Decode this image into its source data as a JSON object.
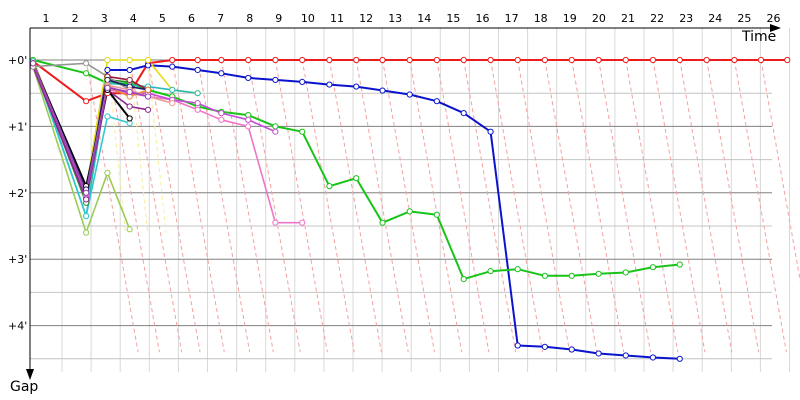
{
  "chart_data": {
    "type": "line",
    "x_label": "Time",
    "y_label": "Gap",
    "x_ticks": [
      "1",
      "2",
      "3",
      "4",
      "5",
      "6",
      "7",
      "8",
      "9",
      "10",
      "11",
      "12",
      "13",
      "14",
      "15",
      "16",
      "17",
      "18",
      "19",
      "20",
      "21",
      "22",
      "23",
      "24",
      "25",
      "26"
    ],
    "y_ticks": [
      "+0'",
      "+1'",
      "+2'",
      "+3'",
      "+4'"
    ],
    "ylim_minutes": [
      -0.4,
      4.5
    ],
    "grid": true,
    "colors": {
      "red": "#ee1c1c",
      "blue": "#0a14cc",
      "green": "#18c418",
      "pink": "#ee74c8",
      "magenta": "#c64ad6",
      "teal": "#2cbab4",
      "cyan": "#30c8d0",
      "yellow": "#e4dc10",
      "olive_green": "#9acc55",
      "dark_green": "#2c8c2c",
      "purple": "#8a2890",
      "gray": "#969696",
      "dark_gray": "#444444",
      "black": "#000000",
      "dark_red": "#9a1838",
      "navy": "#1a1a6a",
      "salmon": "#ee9c9c",
      "orange": "#e89038",
      "violet": "#9a40c0",
      "dashed_link": "#f4a0a0",
      "gridline": "#808080"
    },
    "series": [
      {
        "color": "red",
        "points": [
          [
            0.53,
            0.02
          ],
          [
            2.35,
            0.62
          ],
          [
            3.08,
            0.5
          ],
          [
            3.84,
            0.5
          ],
          [
            4.47,
            0.05
          ],
          [
            5.3,
            0
          ],
          [
            6.17,
            0
          ],
          [
            6.98,
            0
          ],
          [
            7.9,
            0
          ],
          [
            8.83,
            0
          ],
          [
            9.75,
            0
          ],
          [
            10.68,
            0
          ],
          [
            11.6,
            0
          ],
          [
            12.5,
            0
          ],
          [
            13.43,
            0
          ],
          [
            14.36,
            0
          ],
          [
            15.28,
            0
          ],
          [
            16.2,
            0
          ],
          [
            17.13,
            0
          ],
          [
            18.06,
            0
          ],
          [
            18.98,
            0
          ],
          [
            19.9,
            0
          ],
          [
            20.83,
            0
          ],
          [
            21.76,
            0
          ],
          [
            22.68,
            0
          ],
          [
            23.6,
            0
          ],
          [
            24.55,
            0
          ],
          [
            25.46,
            0
          ],
          [
            26.36,
            0
          ]
        ]
      },
      {
        "color": "blue",
        "points": [
          [
            0.53,
            0.02
          ],
          [
            2.35,
            2
          ],
          [
            3.08,
            0.15
          ],
          [
            3.84,
            0.15
          ],
          [
            4.47,
            0.08
          ],
          [
            5.3,
            0.1
          ],
          [
            6.17,
            0.15
          ],
          [
            6.98,
            0.2
          ],
          [
            7.9,
            0.27
          ],
          [
            8.83,
            0.3
          ],
          [
            9.75,
            0.33
          ],
          [
            10.68,
            0.37
          ],
          [
            11.6,
            0.4
          ],
          [
            12.5,
            0.46
          ],
          [
            13.43,
            0.52
          ],
          [
            14.36,
            0.62
          ],
          [
            15.28,
            0.8
          ],
          [
            16.2,
            1.08
          ],
          [
            17.13,
            4.3
          ],
          [
            18.06,
            4.32
          ],
          [
            18.98,
            4.36
          ],
          [
            19.9,
            4.42
          ],
          [
            20.83,
            4.45
          ],
          [
            21.76,
            4.48
          ],
          [
            22.68,
            4.5
          ]
        ]
      },
      {
        "color": "green",
        "points": [
          [
            0.53,
            0
          ],
          [
            2.35,
            0.2
          ],
          [
            3.08,
            0.35
          ],
          [
            3.84,
            0.35
          ],
          [
            4.47,
            0.45
          ],
          [
            5.3,
            0.55
          ],
          [
            6.17,
            0.7
          ],
          [
            6.98,
            0.78
          ],
          [
            7.9,
            0.83
          ],
          [
            8.83,
            1
          ],
          [
            9.75,
            1.08
          ],
          [
            10.68,
            1.9
          ],
          [
            11.6,
            1.78
          ],
          [
            12.5,
            2.45
          ],
          [
            13.43,
            2.28
          ],
          [
            14.36,
            2.33
          ],
          [
            15.28,
            3.3
          ],
          [
            16.2,
            3.18
          ],
          [
            17.13,
            3.15
          ],
          [
            18.06,
            3.25
          ],
          [
            18.98,
            3.25
          ],
          [
            19.9,
            3.22
          ],
          [
            20.83,
            3.2
          ],
          [
            21.76,
            3.12
          ],
          [
            22.68,
            3.08
          ]
        ]
      },
      {
        "color": "yellow",
        "points": [
          [
            0.53,
            0.02
          ],
          [
            2.35,
            1.95
          ],
          [
            3.08,
            0
          ],
          [
            3.84,
            0
          ],
          [
            4.47,
            0
          ],
          [
            5.3,
            0.45
          ],
          [
            6.17,
            0.5
          ]
        ]
      },
      {
        "color": "pink",
        "points": [
          [
            0.53,
            0.05
          ],
          [
            2.35,
            2.05
          ],
          [
            3.08,
            0.45
          ],
          [
            3.84,
            0.5
          ],
          [
            4.47,
            0.55
          ],
          [
            5.3,
            0.6
          ],
          [
            6.17,
            0.75
          ],
          [
            6.98,
            0.9
          ],
          [
            7.9,
            1
          ],
          [
            8.83,
            2.45
          ],
          [
            9.75,
            2.45
          ]
        ]
      },
      {
        "color": "magenta",
        "points": [
          [
            0.53,
            0.05
          ],
          [
            2.35,
            2.08
          ],
          [
            3.08,
            0.4
          ],
          [
            3.84,
            0.5
          ],
          [
            4.47,
            0.5
          ],
          [
            5.3,
            0.6
          ],
          [
            6.17,
            0.65
          ],
          [
            6.98,
            0.8
          ],
          [
            7.9,
            0.9
          ],
          [
            8.83,
            1.08
          ]
        ]
      },
      {
        "color": "teal",
        "points": [
          [
            0.53,
            0.02
          ],
          [
            2.35,
            2.35
          ],
          [
            3.08,
            0.35
          ],
          [
            3.84,
            0.38
          ],
          [
            4.47,
            0.4
          ],
          [
            5.3,
            0.45
          ],
          [
            6.17,
            0.5
          ]
        ]
      },
      {
        "color": "cyan",
        "points": [
          [
            0.53,
            0.05
          ],
          [
            2.35,
            2.35
          ],
          [
            3.08,
            0.85
          ],
          [
            3.84,
            0.95
          ]
        ]
      },
      {
        "color": "olive_green",
        "points": [
          [
            0.53,
            0.1
          ],
          [
            2.35,
            2.6
          ],
          [
            3.08,
            1.7
          ],
          [
            3.84,
            2.55
          ]
        ]
      },
      {
        "color": "dark_green",
        "points": [
          [
            0.53,
            0.05
          ],
          [
            2.35,
            2.15
          ],
          [
            3.08,
            0.3
          ],
          [
            3.84,
            0.33
          ]
        ]
      },
      {
        "color": "purple",
        "points": [
          [
            0.53,
            0.1
          ],
          [
            2.35,
            2.1
          ],
          [
            3.08,
            0.45
          ],
          [
            3.84,
            0.7
          ],
          [
            4.47,
            0.75
          ]
        ]
      },
      {
        "color": "gray",
        "points": [
          [
            0.53,
            0.1
          ],
          [
            2.35,
            0.05
          ],
          [
            3.08,
            0.25
          ],
          [
            3.84,
            0.45
          ]
        ]
      },
      {
        "color": "black",
        "points": [
          [
            0.53,
            0.05
          ],
          [
            2.35,
            1.9
          ],
          [
            3.08,
            0.45
          ],
          [
            3.84,
            0.88
          ]
        ]
      },
      {
        "color": "dark_red",
        "points": [
          [
            0.53,
            0.05
          ],
          [
            2.35,
            2
          ],
          [
            3.08,
            0.25
          ],
          [
            3.84,
            0.3
          ],
          [
            4.47,
            0.45
          ]
        ]
      },
      {
        "color": "navy",
        "points": [
          [
            0.53,
            0.05
          ],
          [
            2.35,
            1.95
          ],
          [
            3.08,
            0.3
          ],
          [
            3.84,
            0.4
          ],
          [
            4.47,
            0.45
          ]
        ]
      },
      {
        "color": "salmon",
        "points": [
          [
            0.53,
            0.05
          ],
          [
            2.35,
            2
          ],
          [
            3.08,
            0.38
          ],
          [
            3.84,
            0.45
          ],
          [
            4.47,
            0.55
          ],
          [
            5.3,
            0.65
          ]
        ]
      },
      {
        "color": "orange",
        "points": [
          [
            0.53,
            0.05
          ],
          [
            2.35,
            2
          ],
          [
            3.08,
            0.4
          ],
          [
            3.84,
            0.55
          ],
          [
            4.47,
            0.45
          ]
        ]
      },
      {
        "color": "violet",
        "points": [
          [
            0.53,
            0.05
          ],
          [
            2.35,
            2
          ],
          [
            3.08,
            0.42
          ],
          [
            3.84,
            0.48
          ],
          [
            4.47,
            0.55
          ]
        ]
      }
    ]
  }
}
